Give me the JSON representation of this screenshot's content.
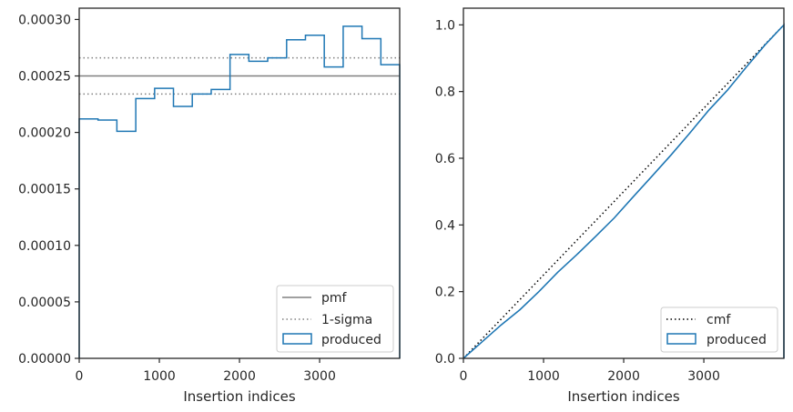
{
  "chart_data": [
    {
      "type": "line",
      "xlabel": "Insertion indices",
      "ylabel": "",
      "xlim": [
        0,
        3999
      ],
      "ylim": [
        0,
        0.00031
      ],
      "xticks": [
        0,
        1000,
        2000,
        3000
      ],
      "xtick_labels": [
        "0",
        "1000",
        "2000",
        "3000"
      ],
      "yticks": [
        0,
        5e-05,
        0.0001,
        0.00015,
        0.0002,
        0.00025,
        0.0003
      ],
      "ytick_labels": [
        "0.00000",
        "0.00005",
        "0.00010",
        "0.00015",
        "0.00020",
        "0.00025",
        "0.00030"
      ],
      "grid": false,
      "legend_position": "lower-right",
      "legend": [
        "pmf",
        "1-sigma",
        "produced"
      ],
      "hlines": [
        {
          "name": "pmf",
          "y": 0.00025,
          "style": "solid",
          "color": "#808080"
        },
        {
          "name": "1-sigma",
          "y": 0.000266,
          "style": "dotted",
          "color": "#808080"
        },
        {
          "name": "1-sigma",
          "y": 0.000234,
          "style": "dotted",
          "color": "#808080"
        }
      ],
      "series": [
        {
          "name": "produced",
          "kind": "step-histogram",
          "color": "#1f77b4",
          "bin_edges": [
            0,
            235,
            470,
            706,
            941,
            1176,
            1411,
            1647,
            1882,
            2117,
            2352,
            2588,
            2823,
            3058,
            3294,
            3529,
            3764,
            3999
          ],
          "values": [
            0.000212,
            0.000211,
            0.000201,
            0.00023,
            0.000239,
            0.000223,
            0.000234,
            0.000238,
            0.000269,
            0.000263,
            0.000266,
            0.000282,
            0.000286,
            0.000258,
            0.000294,
            0.000283,
            0.00026
          ]
        }
      ]
    },
    {
      "type": "line",
      "xlabel": "Insertion indices",
      "ylabel": "",
      "xlim": [
        0,
        3999
      ],
      "ylim": [
        0,
        1.05
      ],
      "xticks": [
        0,
        1000,
        2000,
        3000
      ],
      "xtick_labels": [
        "0",
        "1000",
        "2000",
        "3000"
      ],
      "yticks": [
        0,
        0.2,
        0.4,
        0.6,
        0.8,
        1.0
      ],
      "ytick_labels": [
        "0.0",
        "0.2",
        "0.4",
        "0.6",
        "0.8",
        "1.0"
      ],
      "grid": false,
      "legend_position": "lower-right",
      "legend": [
        "cmf",
        "produced"
      ],
      "series": [
        {
          "name": "cmf",
          "kind": "line",
          "style": "dotted",
          "color": "#000000",
          "x": [
            0,
            3999
          ],
          "y": [
            0,
            1.0
          ]
        },
        {
          "name": "produced",
          "kind": "step-cdf",
          "color": "#1f77b4",
          "x": [
            0,
            235,
            470,
            706,
            941,
            1176,
            1411,
            1647,
            1882,
            2117,
            2352,
            2588,
            2823,
            3058,
            3294,
            3529,
            3764,
            3999
          ],
          "y": [
            0,
            0.05,
            0.1,
            0.146,
            0.2,
            0.258,
            0.31,
            0.365,
            0.421,
            0.484,
            0.546,
            0.609,
            0.675,
            0.743,
            0.804,
            0.873,
            0.94,
            1.0
          ]
        }
      ]
    }
  ]
}
